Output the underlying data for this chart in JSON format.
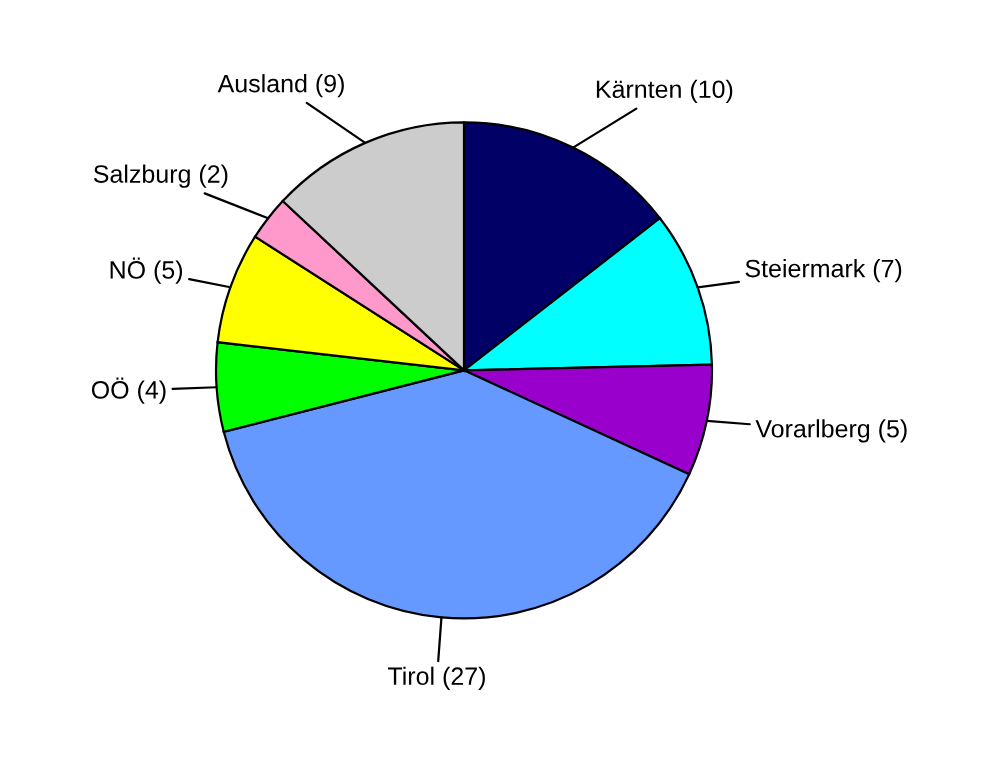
{
  "chart_data": {
    "type": "pie",
    "categories": [
      "Kärnten (10)",
      "Steiermark (7)",
      "Vorarlberg (5)",
      "Tirol (27)",
      "OÖ (4)",
      "NÖ (5)",
      "Salzburg (2)",
      "Ausland (9)"
    ],
    "values": [
      10,
      7,
      5,
      27,
      4,
      5,
      2,
      9
    ],
    "colors": [
      "#000066",
      "#00ffff",
      "#9900cc",
      "#6699ff",
      "#00ff00",
      "#ffff00",
      "#ff99cc",
      "#cccccc"
    ]
  }
}
